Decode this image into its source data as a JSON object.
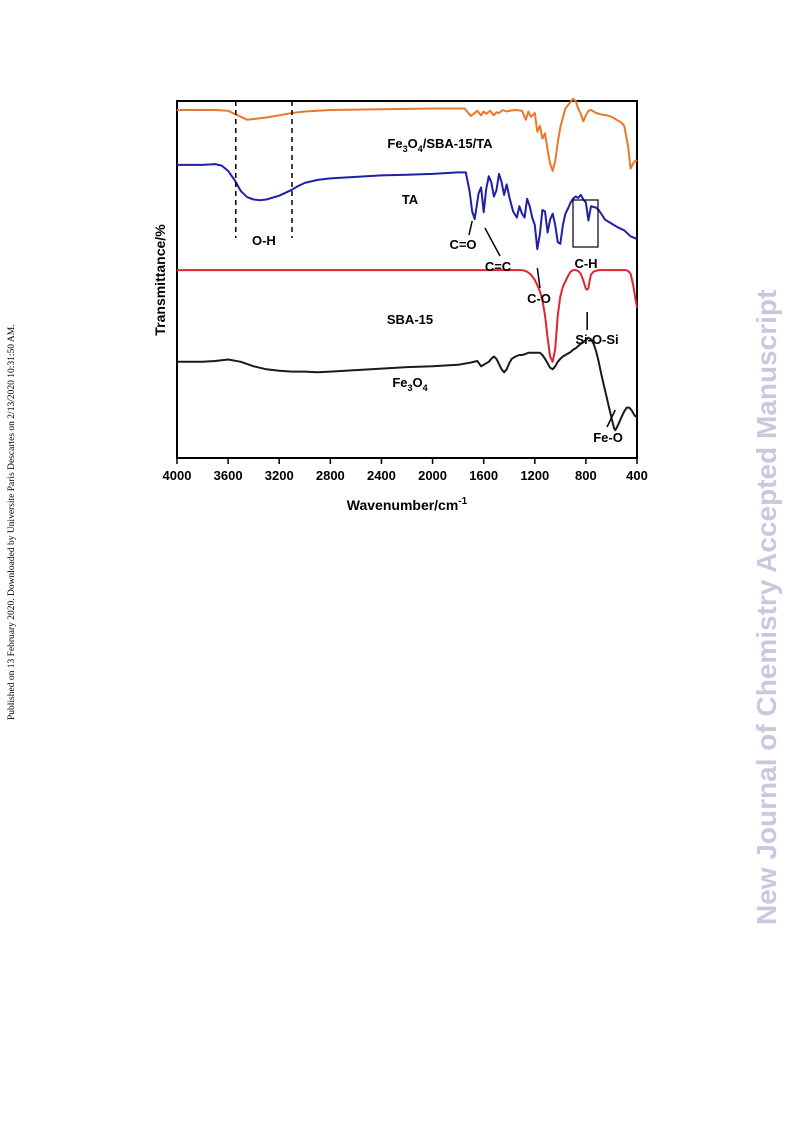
{
  "side_note": "Published on 13 February 2020. Downloaded by Universite Paris Descartes on 2/13/2020 10:31:50 AM.",
  "watermark": "New Journal of Chemistry Accepted Manuscript",
  "chart_data": {
    "type": "line",
    "xlabel": "Wavenumber/cm",
    "xlabel_sup": "-1",
    "ylabel": "Transmittance/%",
    "xlim": [
      4000,
      400
    ],
    "x_reversed": true,
    "xticks": [
      4000,
      3600,
      3200,
      2800,
      2400,
      2000,
      1600,
      1200,
      800,
      400
    ],
    "yticks_shown": false,
    "colors": {
      "Fe3O4/SBA-15/TA": "#e8792a",
      "TA": "#1f1fa8",
      "SBA-15": "#e0252b",
      "Fe3O4": "#1a1a1a"
    },
    "series": [
      {
        "key": "Fe3O4/SBA-15/TA",
        "label_parts": [
          [
            "Fe",
            ""
          ],
          [
            "3",
            "sub"
          ],
          [
            "O",
            ""
          ],
          [
            "4",
            "sub"
          ],
          [
            "/SBA-15/TA",
            ""
          ]
        ],
        "x": [
          4000,
          3700,
          3600,
          3500,
          3450,
          3400,
          3300,
          3200,
          3100,
          3000,
          2800,
          2400,
          2000,
          1750,
          1700,
          1650,
          1620,
          1600,
          1580,
          1550,
          1520,
          1500,
          1480,
          1450,
          1420,
          1400,
          1350,
          1300,
          1270,
          1250,
          1230,
          1200,
          1180,
          1160,
          1140,
          1120,
          1100,
          1080,
          1060,
          1040,
          1020,
          1000,
          960,
          900,
          880,
          860,
          840,
          820,
          800,
          780,
          760,
          720,
          680,
          640,
          600,
          560,
          520,
          500,
          470,
          450,
          430,
          410,
          400
        ],
        "y": [
          1.3,
          1.3,
          1.2,
          0.4,
          0.0,
          0.1,
          0.3,
          0.6,
          0.9,
          1.1,
          1.3,
          1.4,
          1.5,
          1.5,
          0.5,
          1.2,
          0.6,
          1.1,
          0.8,
          1.2,
          0.6,
          1.0,
          0.9,
          1.3,
          1.1,
          1.2,
          1.3,
          1.2,
          0.0,
          1.1,
          0.4,
          0.9,
          -1.6,
          -0.8,
          -2.5,
          -1.8,
          -4.0,
          -5.8,
          -6.8,
          -5.5,
          -3.0,
          -1.0,
          1.5,
          2.8,
          2.5,
          1.5,
          0.8,
          -0.2,
          0.6,
          1.2,
          1.3,
          0.9,
          0.7,
          0.6,
          0.4,
          0.0,
          -0.4,
          -0.8,
          -3.5,
          -6.5,
          -5.8,
          -5.4,
          -5.5
        ]
      },
      {
        "key": "TA",
        "label_parts": [
          [
            "TA",
            ""
          ]
        ],
        "x": [
          4000,
          3800,
          3700,
          3650,
          3600,
          3550,
          3500,
          3450,
          3400,
          3350,
          3300,
          3200,
          3100,
          3050,
          3000,
          2900,
          2800,
          2600,
          2400,
          2200,
          2000,
          1800,
          1740,
          1710,
          1690,
          1670,
          1640,
          1620,
          1600,
          1580,
          1560,
          1540,
          1520,
          1500,
          1480,
          1460,
          1440,
          1420,
          1400,
          1370,
          1340,
          1320,
          1300,
          1280,
          1260,
          1240,
          1220,
          1200,
          1180,
          1160,
          1140,
          1120,
          1100,
          1080,
          1060,
          1040,
          1020,
          1000,
          980,
          960,
          940,
          920,
          900,
          880,
          860,
          840,
          820,
          800,
          780,
          760,
          740,
          720,
          700,
          680,
          650,
          600,
          550,
          500,
          450,
          410,
          400
        ],
        "y": [
          -6,
          -6,
          -5.9,
          -6.1,
          -6.8,
          -8.0,
          -9.5,
          -10.3,
          -10.6,
          -10.7,
          -10.6,
          -10.1,
          -9.3,
          -8.8,
          -8.4,
          -8.0,
          -7.8,
          -7.6,
          -7.4,
          -7.3,
          -7.2,
          -7.0,
          -7.0,
          -9.5,
          -12.2,
          -13.2,
          -9.8,
          -9.0,
          -12.3,
          -9.2,
          -7.5,
          -8.3,
          -10.2,
          -9.4,
          -7.2,
          -8.3,
          -10.0,
          -8.6,
          -10.2,
          -12.2,
          -13.0,
          -11.5,
          -12.5,
          -13.0,
          -10.5,
          -11.5,
          -13.0,
          -14.0,
          -17.2,
          -15.2,
          -12.0,
          -12.2,
          -15.0,
          -13.3,
          -12.5,
          -14.0,
          -16.3,
          -16.5,
          -14.0,
          -12.5,
          -11.8,
          -11.0,
          -10.5,
          -10.2,
          -10.4,
          -10.0,
          -10.6,
          -11.0,
          -13.4,
          -11.5,
          -11.6,
          -11.7,
          -12.0,
          -12.5,
          -13.3,
          -13.8,
          -14.3,
          -14.7,
          -15.5,
          -15.8,
          -15.8
        ]
      },
      {
        "key": "SBA-15",
        "label_parts": [
          [
            "SBA-15",
            ""
          ]
        ],
        "x": [
          4000,
          3600,
          3200,
          2800,
          2400,
          2000,
          1600,
          1400,
          1300,
          1260,
          1230,
          1200,
          1180,
          1160,
          1140,
          1120,
          1100,
          1080,
          1060,
          1040,
          1020,
          1000,
          980,
          960,
          940,
          920,
          900,
          880,
          860,
          840,
          820,
          800,
          790,
          780,
          770,
          760,
          740,
          700,
          650,
          600,
          550,
          510,
          490,
          470,
          450,
          430,
          410,
          400
        ],
        "y": [
          -20,
          -20,
          -20,
          -20,
          -20,
          -20,
          -20,
          -20,
          -20,
          -20.2,
          -20.6,
          -21.3,
          -22.0,
          -22.8,
          -24.0,
          -26.0,
          -29.0,
          -31.5,
          -32.2,
          -30.5,
          -26.0,
          -23.5,
          -22.2,
          -21.5,
          -20.8,
          -20.2,
          -20.0,
          -20.0,
          -20.1,
          -20.5,
          -21.4,
          -22.5,
          -22.6,
          -22.4,
          -21.4,
          -20.6,
          -20.2,
          -20.0,
          -20.0,
          -20.0,
          -20.0,
          -20.0,
          -20.0,
          -20.1,
          -20.5,
          -22.0,
          -24.0,
          -25.0
        ]
      },
      {
        "key": "Fe3O4",
        "label_parts": [
          [
            "Fe",
            ""
          ],
          [
            "3",
            "sub"
          ],
          [
            "O",
            ""
          ],
          [
            "4",
            "sub"
          ]
        ],
        "x": [
          4000,
          3800,
          3700,
          3600,
          3500,
          3400,
          3300,
          3200,
          3100,
          3000,
          2900,
          2800,
          2600,
          2400,
          2200,
          2000,
          1800,
          1700,
          1650,
          1620,
          1600,
          1560,
          1540,
          1520,
          1500,
          1480,
          1460,
          1440,
          1420,
          1400,
          1380,
          1350,
          1320,
          1300,
          1280,
          1250,
          1220,
          1200,
          1180,
          1160,
          1140,
          1120,
          1100,
          1080,
          1060,
          1040,
          1020,
          1000,
          980,
          960,
          940,
          920,
          900,
          880,
          860,
          840,
          820,
          800,
          780,
          760,
          740,
          720,
          700,
          680,
          660,
          640,
          620,
          600,
          590,
          580,
          570,
          560,
          540,
          520,
          500,
          480,
          460,
          440,
          420,
          400
        ],
        "y": [
          -32.2,
          -32.2,
          -32.1,
          -31.9,
          -32.2,
          -32.8,
          -33.2,
          -33.4,
          -33.5,
          -33.5,
          -33.6,
          -33.5,
          -33.3,
          -33.1,
          -32.9,
          -32.8,
          -32.6,
          -32.3,
          -32.1,
          -32.8,
          -32.6,
          -32.2,
          -31.8,
          -31.5,
          -31.8,
          -32.5,
          -33.2,
          -33.6,
          -33.2,
          -32.4,
          -31.8,
          -31.5,
          -31.3,
          -31.3,
          -31.2,
          -31.0,
          -31.0,
          -31.0,
          -31.0,
          -31.0,
          -31.3,
          -31.8,
          -32.4,
          -33.0,
          -33.2,
          -32.8,
          -32.2,
          -31.8,
          -31.5,
          -31.3,
          -31.1,
          -30.9,
          -30.6,
          -30.4,
          -30.1,
          -29.8,
          -29.6,
          -29.3,
          -29.0,
          -29.2,
          -29.8,
          -30.8,
          -32.2,
          -33.8,
          -35.3,
          -36.7,
          -38.2,
          -39.6,
          -40.3,
          -41.0,
          -41.3,
          -41.0,
          -40.3,
          -39.5,
          -38.8,
          -38.3,
          -38.3,
          -38.7,
          -39.3,
          -39.6
        ]
      }
    ],
    "annotations": [
      {
        "key": "oh",
        "text": "O-H",
        "x_range": [
          3540,
          3100
        ]
      },
      {
        "key": "co_double",
        "text": "C=O",
        "x": 1690
      },
      {
        "key": "cc_double",
        "text": "C=C",
        "x": 1590
      },
      {
        "key": "co_single",
        "text": "C-O",
        "x": 1180
      },
      {
        "key": "ch",
        "text": "C-H",
        "x_range": [
          900,
          700
        ]
      },
      {
        "key": "siosi",
        "text": "Si-O-Si",
        "x": 790
      },
      {
        "key": "feo",
        "text": "Fe-O",
        "x": 570
      }
    ]
  }
}
